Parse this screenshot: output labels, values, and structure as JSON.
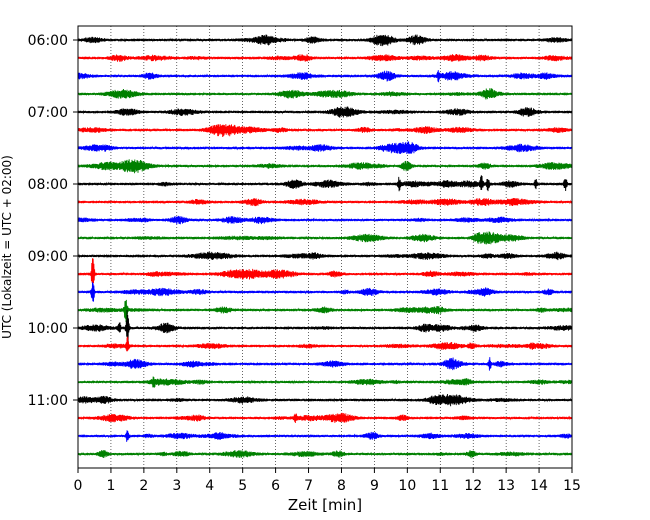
{
  "chart_data": {
    "type": "line",
    "title": "",
    "xlabel": "Zeit  [min]",
    "ylabel": "UTC (Lokalzeit = UTC + 02:00)",
    "xlim": [
      0,
      15
    ],
    "x_ticks": [
      "0",
      "1",
      "2",
      "3",
      "4",
      "5",
      "6",
      "7",
      "8",
      "9",
      "10",
      "11",
      "12",
      "13",
      "14",
      "15"
    ],
    "y_ticks": [
      "06:00",
      "07:00",
      "08:00",
      "09:00",
      "10:00",
      "11:00"
    ],
    "grid": "vertical dotted lines at each minute",
    "trace_interval_min": 15,
    "trace_colors": [
      "#000000",
      "#ff0000",
      "#0000ff",
      "#008000"
    ],
    "series": [
      {
        "start": "06:00",
        "color": "#000000"
      },
      {
        "start": "06:15",
        "color": "#ff0000"
      },
      {
        "start": "06:30",
        "color": "#0000ff"
      },
      {
        "start": "06:45",
        "color": "#008000"
      },
      {
        "start": "07:00",
        "color": "#000000"
      },
      {
        "start": "07:15",
        "color": "#ff0000"
      },
      {
        "start": "07:30",
        "color": "#0000ff"
      },
      {
        "start": "07:45",
        "color": "#008000"
      },
      {
        "start": "08:00",
        "color": "#000000"
      },
      {
        "start": "08:15",
        "color": "#ff0000"
      },
      {
        "start": "08:30",
        "color": "#0000ff"
      },
      {
        "start": "08:45",
        "color": "#008000"
      },
      {
        "start": "09:00",
        "color": "#000000"
      },
      {
        "start": "09:15",
        "color": "#ff0000"
      },
      {
        "start": "09:30",
        "color": "#0000ff"
      },
      {
        "start": "09:45",
        "color": "#008000"
      },
      {
        "start": "10:00",
        "color": "#000000"
      },
      {
        "start": "10:15",
        "color": "#ff0000"
      },
      {
        "start": "10:30",
        "color": "#0000ff"
      },
      {
        "start": "10:45",
        "color": "#008000"
      },
      {
        "start": "11:00",
        "color": "#000000"
      },
      {
        "start": "11:15",
        "color": "#ff0000"
      },
      {
        "start": "11:30",
        "color": "#0000ff"
      },
      {
        "start": "11:45",
        "color": "#008000"
      }
    ]
  }
}
